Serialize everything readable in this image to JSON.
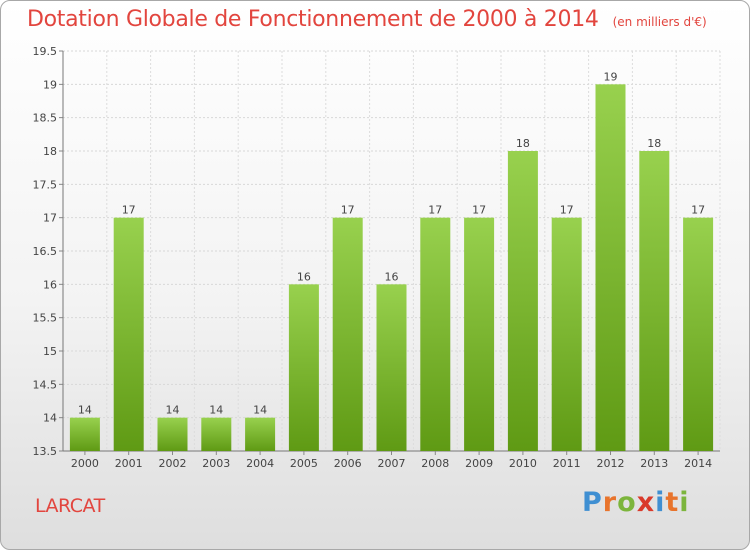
{
  "title": "Dotation Globale de Fonctionnement de 2000 à 2014",
  "unit": "(en milliers d'€)",
  "commune": "LARCAT",
  "logo": {
    "letters": [
      "P",
      "r",
      "o",
      "x",
      "i",
      "t",
      "i"
    ],
    "colors": [
      "#3f8fd2",
      "#e8742c",
      "#7cb53c",
      "#d93a2b",
      "#3f8fd2",
      "#e8742c",
      "#7cb53c"
    ]
  },
  "colors": {
    "bar_top": "#98d14e",
    "bar_bottom": "#5f9a14",
    "title": "#e2453e"
  },
  "chart_data": {
    "type": "bar",
    "title": "Dotation Globale de Fonctionnement de 2000 à 2014",
    "categories": [
      "2000",
      "2001",
      "2002",
      "2003",
      "2004",
      "2005",
      "2006",
      "2007",
      "2008",
      "2009",
      "2010",
      "2011",
      "2012",
      "2013",
      "2014"
    ],
    "values": [
      14,
      17,
      14,
      14,
      14,
      16,
      17,
      16,
      17,
      17,
      18,
      17,
      19,
      18,
      17
    ],
    "value_labels": [
      "14",
      "17",
      "14",
      "14",
      "14",
      "16",
      "17",
      "16",
      "17",
      "17",
      "18",
      "17",
      "19",
      "18",
      "17"
    ],
    "ylim": [
      13.5,
      19.5
    ],
    "yticks": [
      "13.5",
      "14",
      "14.5",
      "15",
      "15.5",
      "16",
      "16.5",
      "17",
      "17.5",
      "18",
      "18.5",
      "19",
      "19.5"
    ],
    "grid": true
  }
}
